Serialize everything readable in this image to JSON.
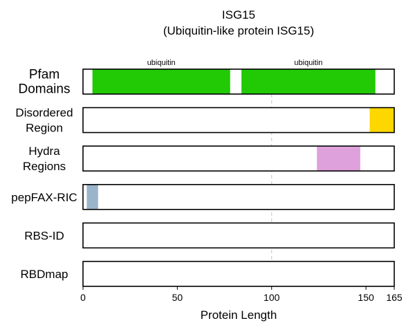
{
  "chart_data": {
    "type": "track",
    "title": "ISG15",
    "subtitle": "(Ubiquitin-like protein ISG15)",
    "xlabel": "Protein Length",
    "xlim": [
      0,
      165
    ],
    "xticks": [
      0,
      50,
      100,
      150,
      165
    ],
    "reference_line_x": 100,
    "tracks": [
      {
        "label": [
          "Pfam",
          "Domains"
        ],
        "features": [
          {
            "start": 5,
            "end": 78,
            "color": "#22c905",
            "label": "ubiquitin"
          },
          {
            "start": 84,
            "end": 155,
            "color": "#22c905",
            "label": "ubiquitin"
          }
        ]
      },
      {
        "label": [
          "Disordered",
          "Region"
        ],
        "features": [
          {
            "start": 152,
            "end": 165,
            "color": "#ffd700"
          }
        ]
      },
      {
        "label": [
          "Hydra",
          "Regions"
        ],
        "features": [
          {
            "start": 124,
            "end": 147,
            "color": "#dea1dc"
          }
        ]
      },
      {
        "label": [
          "pepFAX-RIC"
        ],
        "features": [
          {
            "start": 2,
            "end": 8,
            "color": "#99b4cb"
          }
        ]
      },
      {
        "label": [
          "RBS-ID"
        ],
        "features": []
      },
      {
        "label": [
          "RBDmap"
        ],
        "features": []
      }
    ]
  }
}
